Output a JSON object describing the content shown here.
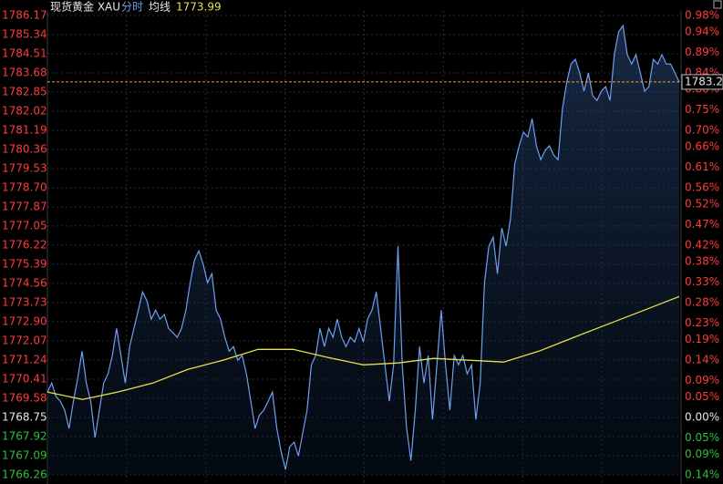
{
  "chart_data": {
    "type": "line",
    "title": "现货黄金 XAU",
    "ylim": [
      1766.26,
      1786.17
    ],
    "yticks": [
      1786.17,
      1785.34,
      1784.51,
      1783.68,
      1782.85,
      1782.02,
      1781.19,
      1780.36,
      1779.53,
      {
        "value": 1778.7,
        "label": "1778.70"
      },
      1777.87,
      1777.05,
      1776.22,
      1775.39,
      1774.56,
      1773.73,
      {
        "value": 1772.9,
        "label": "1772.90"
      },
      1772.07,
      1771.24,
      1770.41,
      1769.58,
      1768.75,
      1767.92,
      1767.09,
      1766.26
    ],
    "y2lim": [
      -0.14,
      0.98
    ],
    "y2ticks": [
      {
        "value": 0.98,
        "label": "0.98%"
      },
      {
        "value": 0.94,
        "label": "0.94%"
      },
      {
        "value": 0.89,
        "label": "0.89%"
      },
      {
        "value": 0.84,
        "label": "0.84%"
      },
      {
        "value": 0.8,
        "label": "0.80%"
      },
      {
        "value": 0.75,
        "label": "0.75%"
      },
      {
        "value": 0.7,
        "label": "0.70%"
      },
      {
        "value": 0.66,
        "label": "0.66%"
      },
      {
        "value": 0.61,
        "label": "0.61%"
      },
      {
        "value": 0.56,
        "label": "0.56%"
      },
      {
        "value": 0.52,
        "label": "0.52%"
      },
      {
        "value": 0.47,
        "label": "0.47%"
      },
      {
        "value": 0.42,
        "label": "0.42%"
      },
      {
        "value": 0.38,
        "label": "0.38%"
      },
      {
        "value": 0.33,
        "label": "0.33%"
      },
      {
        "value": 0.28,
        "label": "0.28%"
      },
      {
        "value": 0.23,
        "label": "0.23%"
      },
      {
        "value": 0.19,
        "label": "0.19%"
      },
      {
        "value": 0.14,
        "label": "0.14%"
      },
      {
        "value": 0.09,
        "label": "0.09%"
      },
      {
        "value": 0.05,
        "label": "0.05%"
      },
      {
        "value": 0.0,
        "label": "0.00%"
      },
      {
        "value": -0.05,
        "label": "0.05%"
      },
      {
        "value": -0.09,
        "label": "0.09%"
      },
      {
        "value": -0.14,
        "label": "0.14%"
      }
    ],
    "up_color": "#ff3b3b",
    "down_color": "#2fbf3a",
    "flat_color": "#e6e6e6",
    "series": [
      {
        "name": "分时",
        "color": "#6f9ff0",
        "values": [
          1769.85,
          1770.24,
          1769.65,
          1769.45,
          1769.06,
          1768.27,
          1769.45,
          1770.44,
          1771.62,
          1770.24,
          1769.45,
          1767.87,
          1769.06,
          1770.24,
          1770.64,
          1771.43,
          1772.61,
          1771.43,
          1770.24,
          1771.82,
          1772.61,
          1773.4,
          1774.19,
          1773.8,
          1773.01,
          1773.4,
          1773.01,
          1773.21,
          1772.61,
          1772.42,
          1772.22,
          1772.61,
          1773.4,
          1774.59,
          1775.58,
          1775.97,
          1775.38,
          1774.59,
          1774.98,
          1773.4,
          1773.01,
          1772.22,
          1771.62,
          1771.82,
          1771.23,
          1771.43,
          1770.64,
          1769.45,
          1768.27,
          1768.86,
          1769.06,
          1769.45,
          1769.85,
          1768.27,
          1767.28,
          1766.49,
          1767.48,
          1767.68,
          1767.08,
          1768.07,
          1769.06,
          1771.03,
          1771.43,
          1772.61,
          1771.82,
          1772.61,
          1772.22,
          1773.01,
          1772.22,
          1771.82,
          1772.22,
          1772.02,
          1772.61,
          1772.02,
          1773.01,
          1773.4,
          1774.19,
          1772.61,
          1771.03,
          1769.45,
          1771.03,
          1776.17,
          1771.03,
          1768.27,
          1766.88,
          1769.06,
          1771.82,
          1770.24,
          1771.43,
          1768.66,
          1771.03,
          1773.4,
          1771.03,
          1769.06,
          1771.43,
          1771.03,
          1771.43,
          1770.64,
          1771.03,
          1768.66,
          1770.24,
          1774.59,
          1776.17,
          1776.56,
          1774.98,
          1776.96,
          1776.17,
          1777.36,
          1779.73,
          1780.52,
          1781.11,
          1780.91,
          1781.7,
          1780.52,
          1779.92,
          1780.32,
          1780.52,
          1780.12,
          1779.92,
          1782.1,
          1783.28,
          1784.07,
          1784.27,
          1783.68,
          1782.89,
          1783.68,
          1782.69,
          1782.49,
          1782.89,
          1783.09,
          1782.49,
          1784.47,
          1785.46,
          1785.73,
          1784.47,
          1784.07,
          1784.47,
          1783.68,
          1782.89,
          1783.09,
          1784.27,
          1784.07,
          1784.47,
          1784.07,
          1784.07,
          1783.68,
          1783.29
        ]
      },
      {
        "name": "均线",
        "color": "#e8e04a",
        "values": [
          1769.85,
          1769.53,
          1769.85,
          1770.24,
          1770.83,
          1771.23,
          1771.7,
          1771.7,
          1771.35,
          1771.03,
          1771.11,
          1771.31,
          1771.23,
          1771.15,
          1771.62,
          1772.22,
          1772.81,
          1773.4,
          1773.99
        ]
      }
    ],
    "last_price_color": "#f0a030"
  }
}
